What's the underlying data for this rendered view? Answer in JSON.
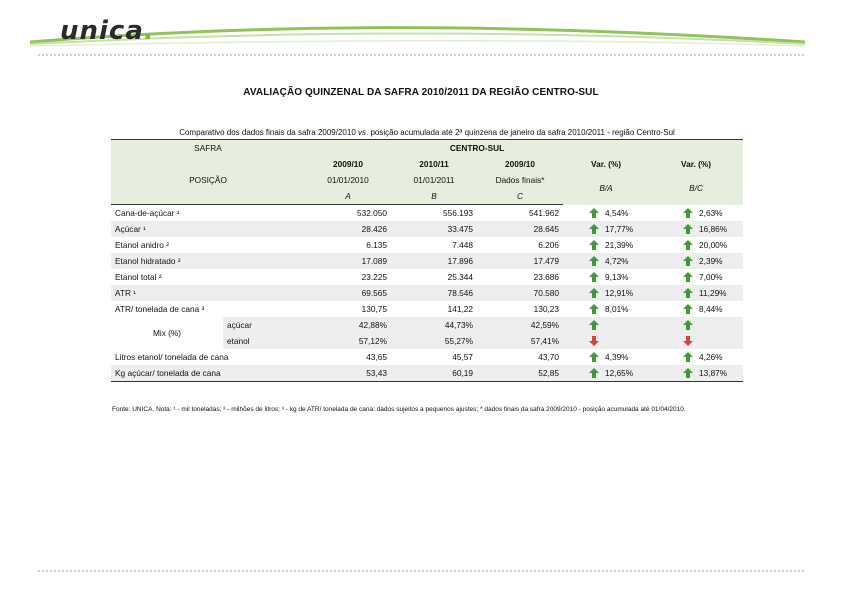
{
  "logo": {
    "text": "unica",
    "accent": "#7fb540"
  },
  "title": "AVALIAÇÃO QUINZENAL DA SAFRA 2010/2011 DA REGIÃO CENTRO-SUL",
  "caption": {
    "part1": "Comparativo dos dados finais da safra 2009/2010",
    "vs": "vs",
    "part2": ". posição acumulada até 2ª quinzena de janeiro da safra  2010/2011 - região Centro-Sul"
  },
  "header": {
    "safra": "SAFRA",
    "posicao": "POSIÇÃO",
    "group": "CENTRO-SUL",
    "cols": [
      {
        "year": "2009/10",
        "date": "01/01/2010",
        "letter": "A"
      },
      {
        "year": "2010/11",
        "date": "01/01/2011",
        "letter": "B"
      },
      {
        "year": "2009/10",
        "date": "Dados finais*",
        "letter": "C"
      }
    ],
    "var1": "Var. (%)",
    "var1_sub": "B/A",
    "var2": "Var. (%)",
    "var2_sub": "B/C"
  },
  "rows": [
    {
      "label": "Cana-de-açúcar ¹",
      "a": "532.050",
      "b": "556.193",
      "c": "541.962",
      "v1": "4,54%",
      "d1": "up",
      "v2": "2,63%",
      "d2": "up"
    },
    {
      "label": "Açúcar ¹",
      "a": "28.426",
      "b": "33.475",
      "c": "28.645",
      "v1": "17,77%",
      "d1": "up",
      "v2": "16,86%",
      "d2": "up"
    },
    {
      "label": "Etanol anidro ²",
      "a": "6.135",
      "b": "7.448",
      "c": "6.206",
      "v1": "21,39%",
      "d1": "up",
      "v2": "20,00%",
      "d2": "up"
    },
    {
      "label": "Etanol hidratado ²",
      "a": "17.089",
      "b": "17.896",
      "c": "17.479",
      "v1": "4,72%",
      "d1": "up",
      "v2": "2,39%",
      "d2": "up"
    },
    {
      "label": "Etanol total ²",
      "a": "23.225",
      "b": "25.344",
      "c": "23.686",
      "v1": "9,13%",
      "d1": "up",
      "v2": "7,00%",
      "d2": "up"
    },
    {
      "label": "ATR ¹",
      "a": "69.565",
      "b": "78.546",
      "c": "70.580",
      "v1": "12,91%",
      "d1": "up",
      "v2": "11,29%",
      "d2": "up"
    },
    {
      "label": "ATR/ tonelada de cana ³",
      "a": "130,75",
      "b": "141,22",
      "c": "130,23",
      "v1": "8,01%",
      "d1": "up",
      "v2": "8,44%",
      "d2": "up"
    }
  ],
  "mix": {
    "label": "Mix (%)",
    "rows": [
      {
        "label": "açúcar",
        "a": "42,88%",
        "b": "44,73%",
        "c": "42,59%",
        "d1": "up",
        "d2": "up"
      },
      {
        "label": "etanol",
        "a": "57,12%",
        "b": "55,27%",
        "c": "57,41%",
        "d1": "down",
        "d2": "down"
      }
    ]
  },
  "tail_rows": [
    {
      "label": "Litros etanol/ tonelada de cana",
      "a": "43,65",
      "b": "45,57",
      "c": "43,70",
      "v1": "4,39%",
      "d1": "up",
      "v2": "4,26%",
      "d2": "up"
    },
    {
      "label": "Kg açúcar/ tonelada de cana",
      "a": "53,43",
      "b": "60,19",
      "c": "52,85",
      "v1": "12,65%",
      "d1": "up",
      "v2": "13,87%",
      "d2": "up"
    }
  ],
  "footnote": "Fonte: UNICA. Nota: ¹ - mil toneladas; ² - milhões de litros; ³ - kg de ATR/ tonelada de cana; dados sujeitos a pequenos ajustes; * dados finais da safra 2009/2010 - posição acumulada até 01/04/2010.",
  "colors": {
    "up": "#3e9a3a",
    "down": "#d9443a",
    "header_bg": "#e6efdd",
    "band_bg": "#eeeeee"
  }
}
